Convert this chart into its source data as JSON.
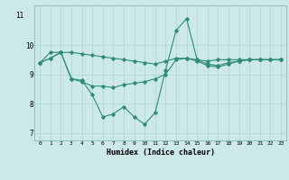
{
  "x": [
    0,
    1,
    2,
    3,
    4,
    5,
    6,
    7,
    8,
    9,
    10,
    11,
    12,
    13,
    14,
    15,
    16,
    17,
    18,
    19,
    20,
    21,
    22,
    23
  ],
  "y_main": [
    9.4,
    9.55,
    9.75,
    8.85,
    8.8,
    8.3,
    7.55,
    7.65,
    7.9,
    7.55,
    7.3,
    7.7,
    9.15,
    10.5,
    10.9,
    9.5,
    9.35,
    9.3,
    9.4,
    9.45,
    9.5,
    9.5,
    9.5,
    9.5
  ],
  "y_flat": [
    9.4,
    9.75,
    9.75,
    9.75,
    9.7,
    9.65,
    9.6,
    9.55,
    9.5,
    9.45,
    9.4,
    9.35,
    9.45,
    9.55,
    9.55,
    9.5,
    9.45,
    9.5,
    9.5,
    9.5,
    9.5,
    9.5,
    9.5,
    9.5
  ],
  "y_mid": [
    9.4,
    9.55,
    9.75,
    8.85,
    8.75,
    8.6,
    8.6,
    8.55,
    8.65,
    8.7,
    8.75,
    8.85,
    9.0,
    9.5,
    9.55,
    9.45,
    9.3,
    9.25,
    9.35,
    9.45,
    9.5,
    9.5,
    9.5,
    9.5
  ],
  "color": "#2e8b7a",
  "bg_color": "#cce8e8",
  "grid_color": "#aad4d4",
  "xlabel": "Humidex (Indice chaleur)",
  "ylim": [
    6.75,
    11.35
  ],
  "yticks": [
    7,
    8,
    9,
    10
  ],
  "xlim": [
    -0.5,
    23.5
  ]
}
